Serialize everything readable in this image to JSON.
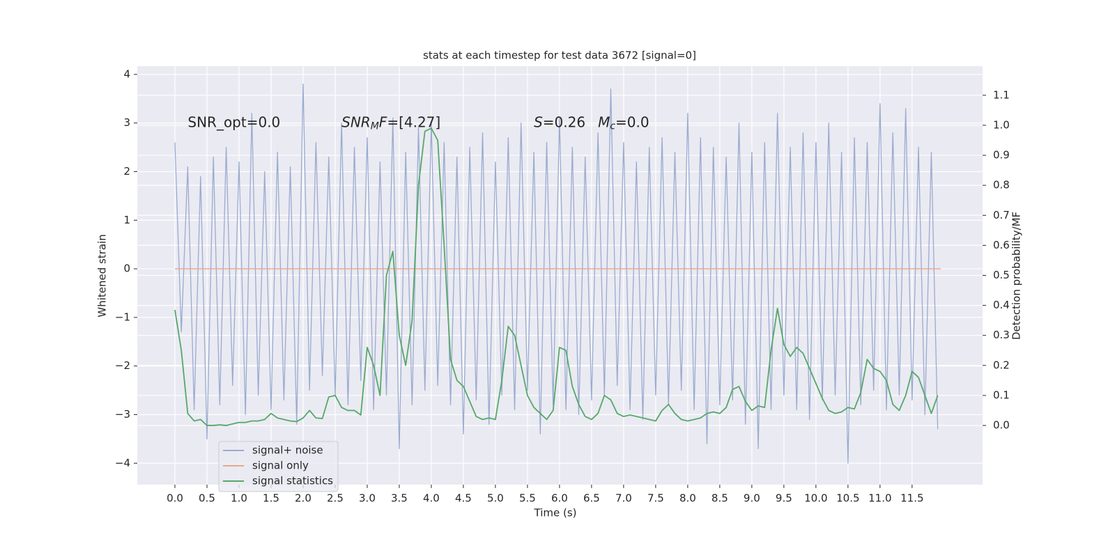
{
  "chart_data": {
    "type": "line",
    "title": "stats at each timestep for test data 3672 [signal=0]",
    "xlabel": "Time (s)",
    "ylabel": "Whitened strain",
    "y2label": "Detection probability/MF",
    "grid": true,
    "legend": "lower left",
    "xlim": [
      -0.587,
      12.6
    ],
    "ylim": [
      -4.44,
      4.17
    ],
    "y2lim": [
      -0.197,
      1.197
    ],
    "xticks": [
      {
        "value": 0,
        "label": "0.0"
      },
      0.5,
      {
        "value": 1,
        "label": "1.0"
      },
      1.5,
      {
        "value": 2,
        "label": "2.0"
      },
      2.5,
      {
        "value": 3,
        "label": "3.0"
      },
      3.5,
      {
        "value": 4,
        "label": "4.0"
      },
      4.5,
      {
        "value": 5,
        "label": "5.0"
      },
      5.5,
      {
        "value": 6,
        "label": "6.0"
      },
      6.5,
      {
        "value": 7,
        "label": "7.0"
      },
      7.5,
      {
        "value": 8,
        "label": "8.0"
      },
      8.5,
      {
        "value": 9,
        "label": "9.0"
      },
      9.5,
      {
        "value": 10,
        "label": "10.0"
      },
      10.5,
      {
        "value": 11,
        "label": "11.0"
      },
      11.5
    ],
    "yticks": [
      {
        "value": -4,
        "label": "−4"
      },
      {
        "value": -3,
        "label": "−3"
      },
      {
        "value": -2,
        "label": "−2"
      },
      {
        "value": -1,
        "label": "−1"
      },
      0,
      1,
      2,
      3,
      4
    ],
    "y2ticks": [
      {
        "value": 0,
        "label": "0.0"
      },
      0.1,
      0.2,
      0.3,
      0.4,
      0.5,
      0.6,
      0.7,
      0.8,
      0.9,
      {
        "value": 1,
        "label": "1.0"
      },
      1.1
    ],
    "x": [
      0.0,
      0.1,
      0.2,
      0.3,
      0.4,
      0.5,
      0.6,
      0.7,
      0.8,
      0.9,
      1.0,
      1.1,
      1.2,
      1.3,
      1.4,
      1.5,
      1.6,
      1.7,
      1.8,
      1.9,
      2.0,
      2.1,
      2.2,
      2.3,
      2.4,
      2.5,
      2.6,
      2.7,
      2.8,
      2.9,
      3.0,
      3.1,
      3.2,
      3.3,
      3.4,
      3.5,
      3.6,
      3.7,
      3.8,
      3.9,
      4.0,
      4.1,
      4.2,
      4.3,
      4.4,
      4.5,
      4.6,
      4.7,
      4.8,
      4.9,
      5.0,
      5.1,
      5.2,
      5.3,
      5.4,
      5.5,
      5.6,
      5.7,
      5.8,
      5.9,
      6.0,
      6.1,
      6.2,
      6.3,
      6.4,
      6.5,
      6.6,
      6.7,
      6.8,
      6.9,
      7.0,
      7.1,
      7.2,
      7.3,
      7.4,
      7.5,
      7.6,
      7.7,
      7.8,
      7.9,
      8.0,
      8.1,
      8.2,
      8.3,
      8.4,
      8.5,
      8.6,
      8.7,
      8.8,
      8.9,
      9.0,
      9.1,
      9.2,
      9.3,
      9.4,
      9.5,
      9.6,
      9.7,
      9.8,
      9.9,
      10.0,
      10.1,
      10.2,
      10.3,
      10.4,
      10.5,
      10.6,
      10.7,
      10.8,
      10.9,
      11.0,
      11.1,
      11.2,
      11.3,
      11.4,
      11.5,
      11.6,
      11.7,
      11.8,
      11.9
    ],
    "series": [
      {
        "name": "signal+ noise",
        "color": "#9aabd0",
        "axis": "y",
        "values": [
          2.6,
          -1.3,
          2.1,
          -2.9,
          1.9,
          -3.5,
          2.3,
          -2.8,
          2.5,
          -2.4,
          2.2,
          -3.0,
          3.2,
          -2.6,
          2.0,
          -2.9,
          2.4,
          -2.7,
          2.1,
          -3.2,
          3.8,
          -2.5,
          2.6,
          -2.2,
          2.3,
          -2.6,
          3.0,
          -2.8,
          2.5,
          -2.3,
          2.7,
          -2.9,
          2.2,
          -2.6,
          3.1,
          -3.7,
          2.4,
          -2.8,
          2.9,
          -2.5,
          3.0,
          -2.4,
          2.6,
          -2.8,
          2.3,
          -3.4,
          2.5,
          -2.7,
          2.8,
          -3.2,
          2.2,
          -2.6,
          2.7,
          -2.9,
          3.0,
          -2.5,
          2.4,
          -3.4,
          2.6,
          -2.8,
          3.1,
          -2.9,
          2.5,
          -3.0,
          2.3,
          -2.7,
          2.8,
          -2.6,
          3.7,
          -2.4,
          2.6,
          -2.9,
          2.2,
          -3.1,
          2.5,
          -2.6,
          2.7,
          -2.8,
          2.4,
          -2.5,
          3.2,
          -2.9,
          2.7,
          -3.6,
          2.5,
          -2.8,
          2.3,
          -2.7,
          3.0,
          -3.2,
          2.4,
          -3.7,
          2.6,
          -2.9,
          3.2,
          -2.6,
          2.5,
          -2.9,
          2.8,
          -3.1,
          2.6,
          -2.7,
          3.0,
          -2.6,
          2.4,
          -4.0,
          2.7,
          -2.8,
          2.6,
          -2.5,
          3.4,
          -2.9,
          2.8,
          -2.6,
          3.3,
          -2.7,
          2.5,
          -3.0,
          2.4,
          -3.3
        ]
      },
      {
        "name": "signal only",
        "color": "#e8a88a",
        "axis": "y",
        "x": [
          0.0,
          11.95
        ],
        "values": [
          0,
          0
        ]
      },
      {
        "name": "signal statistics",
        "color": "#55a868",
        "axis": "y2",
        "values": [
          0.385,
          0.25,
          0.04,
          0.015,
          0.02,
          0.0,
          0.0,
          0.002,
          0.0,
          0.005,
          0.01,
          0.01,
          0.015,
          0.015,
          0.02,
          0.04,
          0.025,
          0.02,
          0.015,
          0.013,
          0.025,
          0.05,
          0.025,
          0.023,
          0.095,
          0.1,
          0.06,
          0.05,
          0.05,
          0.035,
          0.26,
          0.2,
          0.1,
          0.5,
          0.58,
          0.3,
          0.2,
          0.35,
          0.8,
          0.98,
          0.99,
          0.95,
          0.6,
          0.22,
          0.15,
          0.13,
          0.08,
          0.03,
          0.02,
          0.025,
          0.02,
          0.15,
          0.33,
          0.3,
          0.2,
          0.1,
          0.06,
          0.04,
          0.02,
          0.05,
          0.26,
          0.25,
          0.13,
          0.07,
          0.03,
          0.02,
          0.04,
          0.1,
          0.085,
          0.04,
          0.03,
          0.035,
          0.03,
          0.025,
          0.02,
          0.015,
          0.05,
          0.07,
          0.04,
          0.02,
          0.015,
          0.02,
          0.025,
          0.04,
          0.045,
          0.04,
          0.06,
          0.12,
          0.13,
          0.08,
          0.05,
          0.065,
          0.06,
          0.25,
          0.39,
          0.27,
          0.23,
          0.26,
          0.24,
          0.19,
          0.14,
          0.09,
          0.05,
          0.04,
          0.045,
          0.06,
          0.055,
          0.11,
          0.22,
          0.19,
          0.18,
          0.15,
          0.07,
          0.05,
          0.1,
          0.18,
          0.16,
          0.1,
          0.04,
          0.1
        ]
      }
    ],
    "annotations": [
      {
        "x": 0.2,
        "y": 3.0,
        "parts": [
          {
            "text": "SNR_opt=0.0",
            "style": "normal"
          }
        ]
      },
      {
        "x": 2.6,
        "y": 3.0,
        "parts": [
          {
            "text": "SNR",
            "style": "italic"
          },
          {
            "text": "M",
            "style": "italic-sub"
          },
          {
            "text": "F",
            "style": "italic"
          },
          {
            "text": "=[4.27]",
            "style": "normal"
          }
        ]
      },
      {
        "x": 5.6,
        "y": 3.0,
        "parts": [
          {
            "text": "S",
            "style": "italic"
          },
          {
            "text": "=0.26",
            "style": "normal"
          }
        ]
      },
      {
        "x": 6.6,
        "y": 3.0,
        "parts": [
          {
            "text": "M",
            "style": "italic"
          },
          {
            "text": "c",
            "style": "italic-sub"
          },
          {
            "text": "=0.0",
            "style": "normal"
          }
        ]
      }
    ]
  }
}
